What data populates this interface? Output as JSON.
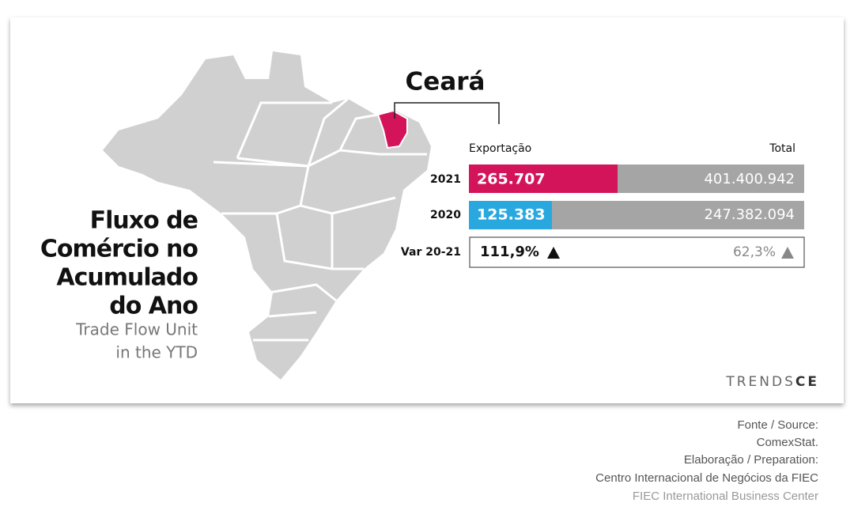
{
  "title": {
    "lines": [
      "Fluxo de",
      "Comércio no",
      "Acumulado",
      "do Ano"
    ],
    "subtitle": [
      "Trade Flow Unit",
      "in the YTD"
    ]
  },
  "state": "Ceará",
  "table": {
    "header": {
      "left": "Exportação",
      "right": "Total"
    },
    "rows": [
      {
        "label": "2021",
        "export": "265.707",
        "total": "401.400.942"
      },
      {
        "label": "2020",
        "export": "125.383",
        "total": "247.382.094"
      },
      {
        "label": "Var 20-21",
        "export": "111,9%",
        "total": "62,3%"
      }
    ]
  },
  "logo": {
    "light": "TRENDS",
    "bold": "CE"
  },
  "source": [
    "Fonte / Source:",
    "ComexStat.",
    "Elaboração / Preparation:",
    "Centro Internacional de Negócios da FIEC",
    "FIEC International Business Center"
  ]
}
